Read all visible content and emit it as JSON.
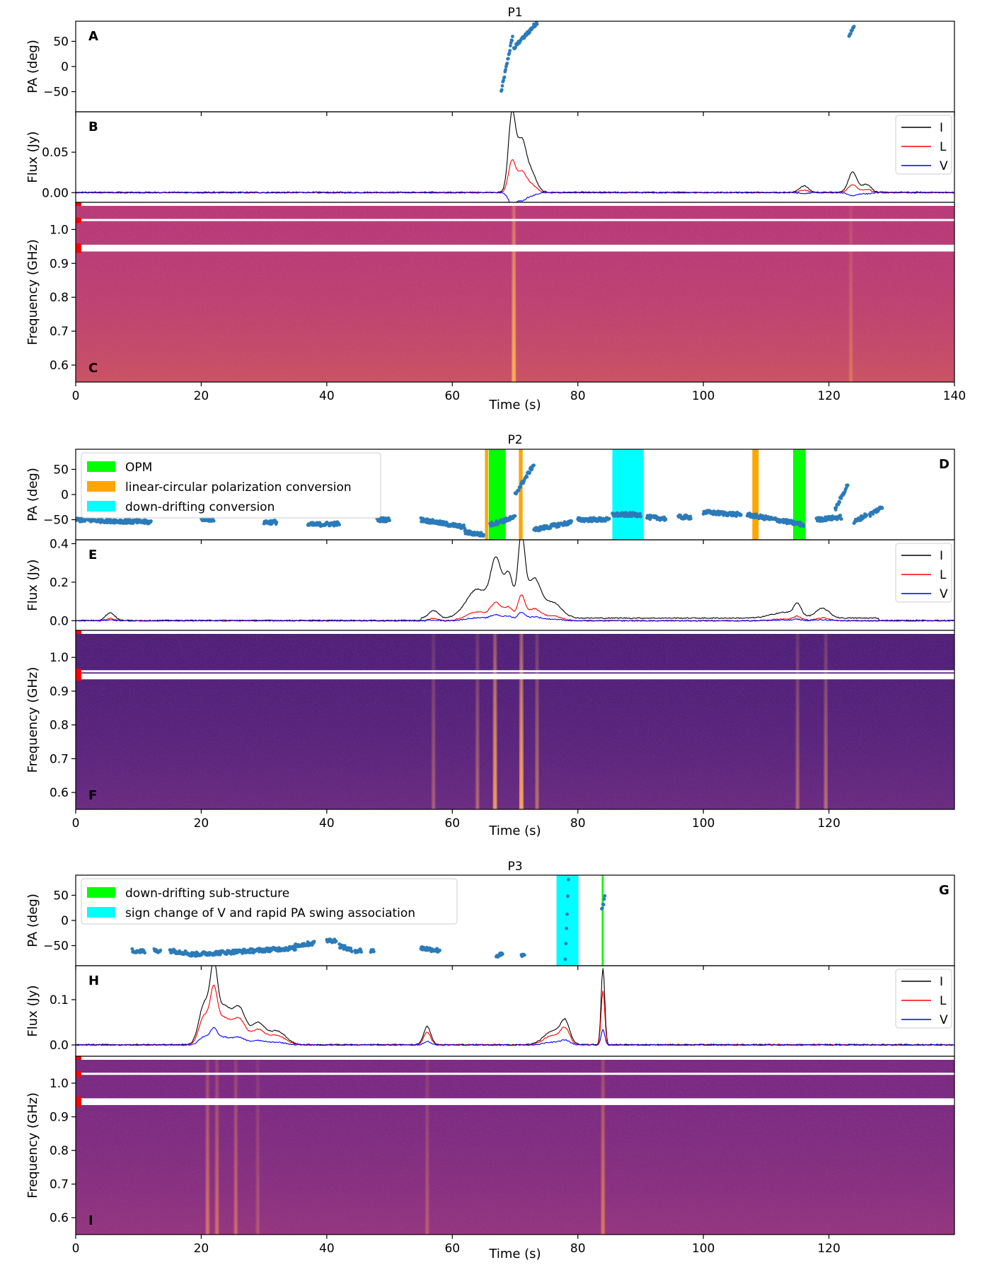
{
  "chart_data": [
    {
      "title": "P1",
      "type": "line",
      "x_max": 140,
      "x_ticks": [
        0,
        20,
        40,
        60,
        80,
        100,
        120,
        140
      ],
      "xlabel": "Time (s)",
      "panels": {
        "pa": {
          "letter": "A",
          "ylabel": "PA (deg)",
          "ylim": [
            -90,
            90
          ],
          "yticks": [
            50,
            0,
            -50
          ],
          "segments": [
            [
              67.8,
              69.6,
              -50,
              60
            ],
            [
              69.8,
              71.0,
              35,
              55
            ],
            [
              71.2,
              73.5,
              55,
              88
            ],
            [
              123.2,
              124.0,
              62,
              78
            ]
          ],
          "bands": [],
          "legend": []
        },
        "flux": {
          "letter": "B",
          "ylabel": "Flux (Jy)",
          "ylim": [
            -0.012,
            0.1
          ],
          "yticks": [
            0.05,
            0.0
          ],
          "yticklabels": [
            "0.05",
            "0.00"
          ],
          "events": [
            [
              69.5,
              0.095,
              0.8
            ],
            [
              71.0,
              0.06,
              1.0
            ],
            [
              72.5,
              0.025,
              1.2
            ],
            [
              123.8,
              0.025,
              1.0
            ],
            [
              116,
              0.008,
              1.0
            ],
            [
              126,
              0.01,
              1.0
            ]
          ],
          "series": [
            {
              "name": "I",
              "color": "#000000",
              "scale": 1.0
            },
            {
              "name": "L",
              "color": "#ff0000",
              "scale": 0.4
            },
            {
              "name": "V",
              "color": "#0000ff",
              "scale": -0.15
            }
          ]
        },
        "dynspec": {
          "letter": "C",
          "ylabel": "Frequency (GHz)",
          "ylim": [
            0.55,
            1.08
          ],
          "yticks": [
            1.0,
            0.9,
            0.8,
            0.7,
            0.6
          ],
          "yticklabels": [
            "1.0",
            "0.9",
            "0.8",
            "0.7",
            "0.6"
          ],
          "bg": "#b83a78",
          "noise": "#e0704a",
          "burst": "#f7b25a",
          "masks": [
            [
              1.025,
              1.031
            ],
            [
              0.935,
              0.955
            ]
          ],
          "bursts": [
            [
              69.8,
              0.9
            ],
            [
              123.5,
              0.25
            ]
          ]
        }
      }
    },
    {
      "title": "P2",
      "type": "line",
      "x_max": 140,
      "x_ticks": [
        0,
        20,
        40,
        60,
        80,
        100,
        120
      ],
      "xlabel": "Time (s)",
      "panels": {
        "pa": {
          "letter": "D",
          "ylabel": "PA (deg)",
          "ylim": [
            -90,
            90
          ],
          "yticks": [
            50,
            0,
            -50
          ],
          "segments": [
            [
              0,
              12,
              -50,
              -55
            ],
            [
              20,
              22,
              -48,
              -50
            ],
            [
              30,
              32,
              -55,
              -55
            ],
            [
              37,
              42,
              -60,
              -58
            ],
            [
              48,
              50,
              -50,
              -50
            ],
            [
              55,
              62,
              -50,
              -65
            ],
            [
              62,
              65,
              -75,
              -80
            ],
            [
              66,
              70,
              -60,
              -45
            ],
            [
              70,
              73,
              0,
              60
            ],
            [
              73,
              79,
              -70,
              -55
            ],
            [
              80,
              85,
              -50,
              -50
            ],
            [
              85.5,
              90,
              -40,
              -40
            ],
            [
              91,
              94,
              -45,
              -48
            ],
            [
              96,
              98,
              -45,
              -45
            ],
            [
              100,
              106,
              -35,
              -40
            ],
            [
              107,
              116,
              -40,
              -60
            ],
            [
              118,
              122,
              -50,
              -45
            ],
            [
              121,
              123,
              -30,
              20
            ],
            [
              124,
              126,
              -55,
              -40
            ],
            [
              126.5,
              128.5,
              -40,
              -25
            ]
          ],
          "bands": [
            [
              65.2,
              65.7,
              "#ffa500"
            ],
            [
              65.8,
              68.5,
              "#00ff00"
            ],
            [
              70.6,
              71.2,
              "#ffa500"
            ],
            [
              85.5,
              90.5,
              "#00ffff"
            ],
            [
              107.8,
              108.8,
              "#ffa500"
            ],
            [
              114.3,
              116.3,
              "#00ff00"
            ]
          ],
          "legend": [
            {
              "label": "OPM",
              "color": "#00ff00"
            },
            {
              "label": "linear-circular polarization conversion",
              "color": "#ffa500"
            },
            {
              "label": "down-drifting conversion",
              "color": "#00ffff"
            }
          ]
        },
        "flux": {
          "letter": "E",
          "ylabel": "Flux (Jy)",
          "ylim": [
            -0.05,
            0.42
          ],
          "yticks": [
            0.4,
            0.2,
            0.0
          ],
          "yticklabels": [
            "0.4",
            "0.2",
            "0.0"
          ],
          "events": [
            [
              5.5,
              0.04,
              1.0
            ],
            [
              57,
              0.04,
              1.0
            ],
            [
              64,
              0.15,
              2.5
            ],
            [
              67,
              0.28,
              1.2
            ],
            [
              69,
              0.22,
              1.0
            ],
            [
              71,
              0.41,
              0.8
            ],
            [
              73,
              0.2,
              1.5
            ],
            [
              76,
              0.08,
              2.0
            ],
            [
              115,
              0.06,
              0.8
            ],
            [
              119,
              0.05,
              1.5
            ],
            [
              113,
              0.03,
              3.0
            ]
          ],
          "series": [
            {
              "name": "I",
              "color": "#000000",
              "scale": 1.0
            },
            {
              "name": "L",
              "color": "#ff0000",
              "scale": 0.3
            },
            {
              "name": "V",
              "color": "#0000ff",
              "scale": 0.1
            }
          ]
        },
        "dynspec": {
          "letter": "F",
          "ylabel": "Frequency (GHz)",
          "ylim": [
            0.55,
            1.08
          ],
          "yticks": [
            1.0,
            0.9,
            0.8,
            0.7,
            0.6
          ],
          "yticklabels": [
            "1.0",
            "0.9",
            "0.8",
            "0.7",
            "0.6"
          ],
          "bg": "#51207a",
          "noise": "#8a3a8c",
          "burst": "#f7a45a",
          "masks": [
            [
              0.957,
              0.962
            ],
            [
              0.935,
              0.952
            ]
          ],
          "bursts": [
            [
              57,
              0.3
            ],
            [
              64,
              0.35
            ],
            [
              66.8,
              0.85
            ],
            [
              71,
              1.0
            ],
            [
              73.5,
              0.4
            ],
            [
              115,
              0.35
            ],
            [
              119.5,
              0.4
            ]
          ]
        }
      }
    },
    {
      "title": "P3",
      "type": "line",
      "x_max": 140,
      "x_ticks": [
        0,
        20,
        40,
        60,
        80,
        100,
        120
      ],
      "xlabel": "Time (s)",
      "panels": {
        "pa": {
          "letter": "G",
          "ylabel": "PA (deg)",
          "ylim": [
            -90,
            90
          ],
          "yticks": [
            50,
            0,
            -50
          ],
          "segments": [
            [
              9,
              11,
              -60,
              -62
            ],
            [
              12.5,
              13.5,
              -60,
              -60
            ],
            [
              15,
              18,
              -60,
              -65
            ],
            [
              18,
              35,
              -68,
              -55
            ],
            [
              35,
              38,
              -50,
              -45
            ],
            [
              40,
              41.5,
              -40,
              -40
            ],
            [
              42,
              44,
              -50,
              -60
            ],
            [
              44.5,
              45.5,
              -60,
              -60
            ],
            [
              47,
              47.5,
              -60,
              -60
            ],
            [
              55,
              58,
              -55,
              -60
            ],
            [
              67,
              68,
              -70,
              -68
            ],
            [
              71,
              71.5,
              -70,
              -70
            ],
            [
              78,
              78.5,
              -80,
              80
            ],
            [
              83.8,
              84.3,
              20,
              45
            ]
          ],
          "bands": [
            [
              76.6,
              80.1,
              "#00ffff"
            ],
            [
              83.8,
              84.1,
              "#00ff00"
            ]
          ],
          "legend": [
            {
              "label": "down-drifting sub-structure",
              "color": "#00ff00"
            },
            {
              "label": "sign change of V and rapid PA swing association",
              "color": "#00ffff"
            }
          ]
        },
        "flux": {
          "letter": "H",
          "ylabel": "Flux (Jy)",
          "ylim": [
            -0.025,
            0.175
          ],
          "yticks": [
            0.1,
            0.0
          ],
          "yticklabels": [
            "0.1",
            "0.0"
          ],
          "events": [
            [
              20.5,
              0.09,
              1.2
            ],
            [
              22,
              0.14,
              0.8
            ],
            [
              23.5,
              0.08,
              1.5
            ],
            [
              26,
              0.08,
              1.5
            ],
            [
              29,
              0.045,
              1.5
            ],
            [
              32,
              0.03,
              2.0
            ],
            [
              56,
              0.04,
              0.8
            ],
            [
              76,
              0.03,
              2.0
            ],
            [
              78,
              0.045,
              1.0
            ],
            [
              84,
              0.17,
              0.4
            ]
          ],
          "series": [
            {
              "name": "I",
              "color": "#000000",
              "scale": 1.0
            },
            {
              "name": "L",
              "color": "#ff0000",
              "scale": 0.7
            },
            {
              "name": "V",
              "color": "#0000ff",
              "scale": 0.2
            }
          ]
        },
        "dynspec": {
          "letter": "I",
          "ylabel": "Frequency (GHz)",
          "ylim": [
            0.55,
            1.08
          ],
          "yticks": [
            1.0,
            0.9,
            0.8,
            0.7,
            0.6
          ],
          "yticklabels": [
            "1.0",
            "0.9",
            "0.8",
            "0.7",
            "0.6"
          ],
          "bg": "#7a2a82",
          "noise": "#b4457c",
          "burst": "#f08a5a",
          "masks": [
            [
              1.025,
              1.031
            ],
            [
              0.935,
              0.955
            ]
          ],
          "bursts": [
            [
              21,
              0.55
            ],
            [
              22.5,
              0.5
            ],
            [
              25.5,
              0.45
            ],
            [
              29,
              0.25
            ],
            [
              56,
              0.3
            ],
            [
              84,
              0.6
            ]
          ]
        }
      }
    }
  ]
}
